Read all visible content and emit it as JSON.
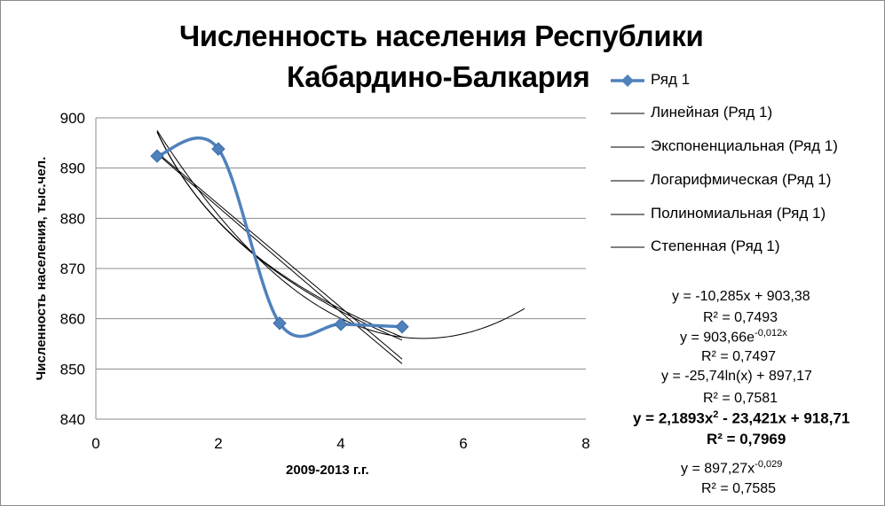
{
  "chart_data": {
    "type": "scatter",
    "title_lines": [
      "Численность населения Республики",
      "Кабардино-Балкария"
    ],
    "xlabel": "2009-2013 г.г.",
    "ylabel": "Численность населения, тыс.чел.",
    "xlim": [
      0,
      8
    ],
    "ylim": [
      840,
      900
    ],
    "x_ticks": [
      "0",
      "2",
      "4",
      "6",
      "8"
    ],
    "y_ticks": [
      "840",
      "850",
      "860",
      "870",
      "880",
      "890",
      "900"
    ],
    "grid": "horizontal",
    "legend_position": "right",
    "series": [
      {
        "name": "Ряд 1",
        "x": [
          1,
          2,
          3,
          4,
          5
        ],
        "y": [
          892.4,
          893.8,
          859.1,
          858.9,
          858.4
        ],
        "smoothed": true,
        "marker": "diamond",
        "color": "#4f81bd"
      }
    ],
    "trendlines": [
      {
        "name": "Линейная (Ряд 1)",
        "kind": "linear",
        "equation": "y = -10,285x + 903,38",
        "r2": "R² = 0,7493"
      },
      {
        "name": "Экспоненциальная (Ряд 1)",
        "kind": "exponential",
        "equation_base": "y = 903,66e",
        "equation_exp": "-0,012x",
        "r2": "R² = 0,7497"
      },
      {
        "name": "Логарифмическая (Ряд 1)",
        "kind": "logarithmic",
        "equation": "y = -25,74ln(x) + 897,17",
        "r2": "R² = 0,7581"
      },
      {
        "name": "Полиномиальная (Ряд 1)",
        "kind": "polynomial",
        "equation_a": "y = 2,1893x",
        "equation_sup": "2",
        "equation_b": " - 23,421x + 918,71",
        "r2": "R² = 0,7969"
      },
      {
        "name": "Степенная (Ряд 1)",
        "kind": "power",
        "equation_base": "y = 897,27x",
        "equation_exp": "-0,029",
        "r2": "R² = 0,7585"
      }
    ]
  }
}
